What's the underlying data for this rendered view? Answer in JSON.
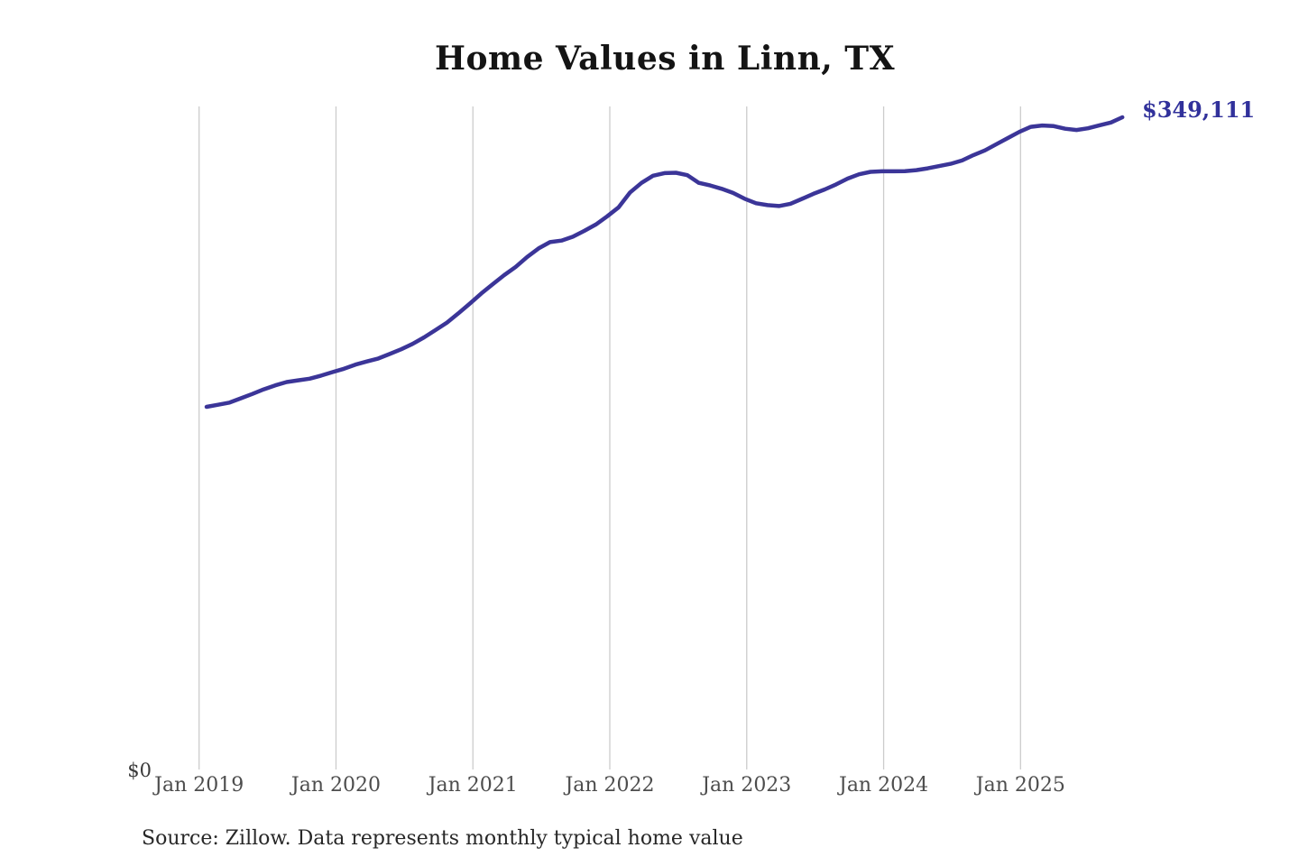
{
  "title": "Home Values in Linn, TX",
  "source_note": "Source: Zillow. Data represents monthly typical home value",
  "end_label": "$349,111",
  "y_axis": {
    "zero_label": "$0"
  },
  "colors": {
    "line": "#3b3598",
    "end_label": "#31319b",
    "gridline": "#cccccc",
    "title": "#141414",
    "tick": "#4d4d4d"
  },
  "chart_data": {
    "type": "line",
    "title": "Home Values in Linn, TX",
    "xlabel": "",
    "ylabel": "",
    "ylim": [
      0,
      349111
    ],
    "grid": "vertical-only",
    "legend": "none",
    "x_ticks": [
      "Jan 2019",
      "Jan 2020",
      "Jan 2021",
      "Jan 2022",
      "Jan 2023",
      "Jan 2024",
      "Jan 2025"
    ],
    "frequency": "monthly",
    "start_month": "Jan 2019",
    "end_month": "Sep 2025",
    "final_value": 349111,
    "series": [
      {
        "name": "Typical home value ($)",
        "values": [
          194100,
          195200,
          196400,
          198700,
          201000,
          203500,
          205600,
          207400,
          208300,
          209200,
          210800,
          212700,
          214500,
          216700,
          218400,
          220000,
          222400,
          224900,
          227800,
          231300,
          235200,
          239200,
          244200,
          249400,
          254800,
          259800,
          264600,
          269000,
          274300,
          278900,
          282300,
          283100,
          285200,
          288300,
          291700,
          296100,
          300900,
          308900,
          314000,
          317800,
          319200,
          319400,
          318100,
          314000,
          312600,
          310800,
          308600,
          305500,
          303100,
          302100,
          301600,
          302800,
          305400,
          308100,
          310500,
          313200,
          316300,
          318600,
          319900,
          320200,
          320200,
          320300,
          320800,
          321800,
          323000,
          324200,
          326000,
          328900,
          331400,
          334700,
          338000,
          341300,
          344000,
          344700,
          344400,
          343000,
          342300,
          343200,
          344800,
          346300,
          349111
        ]
      }
    ]
  }
}
